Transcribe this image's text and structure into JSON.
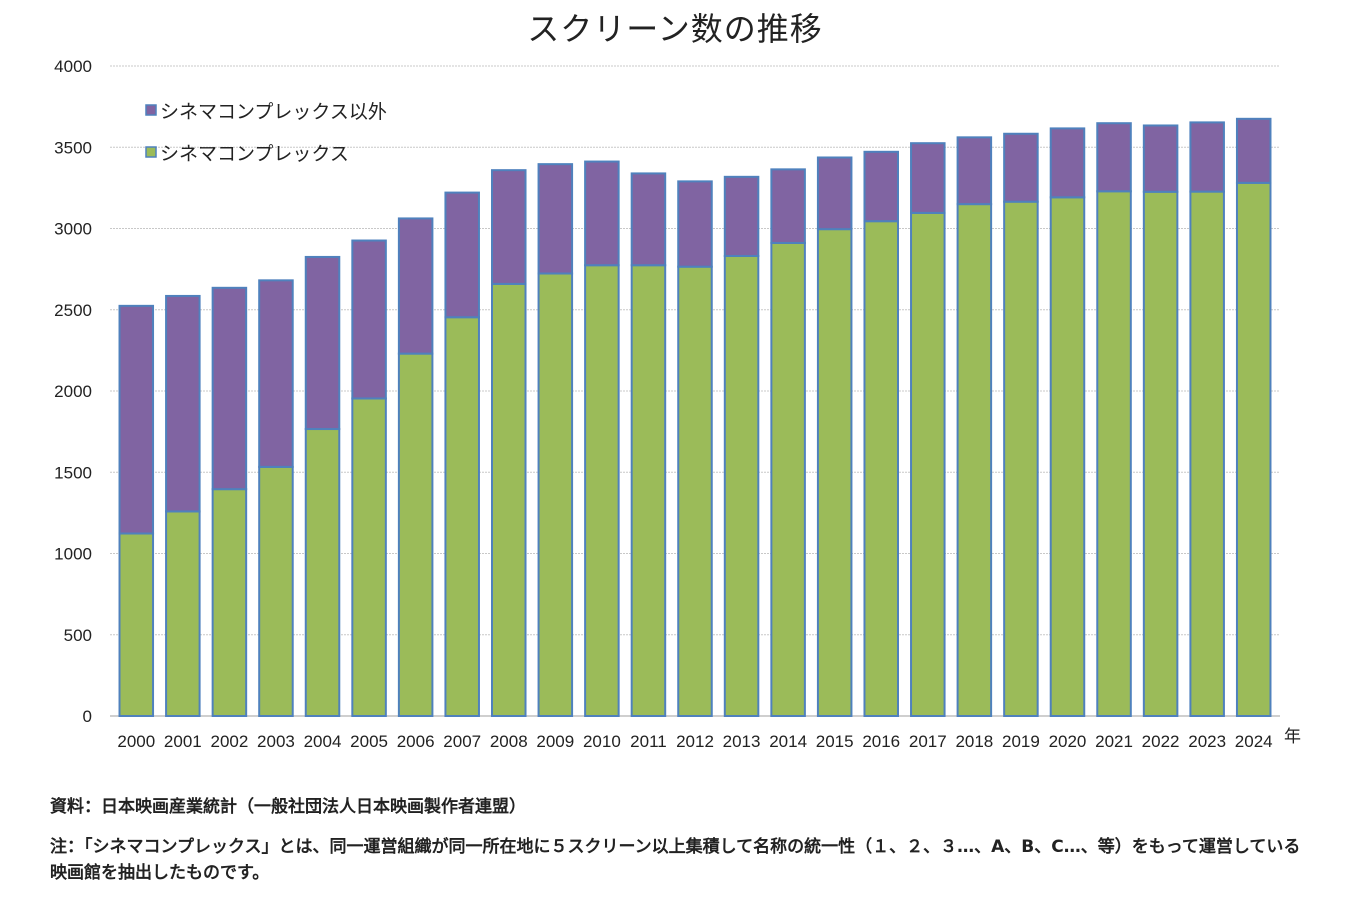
{
  "chart_data": {
    "type": "bar",
    "stacked": true,
    "title": "スクリーン数の推移",
    "xlabel": "",
    "x_unit_label": "年",
    "ylabel": "",
    "ylim": [
      0,
      4000
    ],
    "yticks": [
      0,
      500,
      1000,
      1500,
      2000,
      2500,
      3000,
      3500,
      4000
    ],
    "grid": true,
    "legend_position": "top-left",
    "categories": [
      "2000",
      "2001",
      "2002",
      "2003",
      "2004",
      "2005",
      "2006",
      "2007",
      "2008",
      "2009",
      "2010",
      "2011",
      "2012",
      "2013",
      "2014",
      "2015",
      "2016",
      "2017",
      "2018",
      "2019",
      "2020",
      "2021",
      "2022",
      "2023",
      "2024"
    ],
    "series": [
      {
        "name": "シネマコンプレックス",
        "color": "#9bbb59",
        "values": [
          1123,
          1259,
          1396,
          1533,
          1766,
          1954,
          2230,
          2454,
          2659,
          2723,
          2774,
          2774,
          2765,
          2831,
          2911,
          2996,
          3045,
          3096,
          3150,
          3165,
          3192,
          3229,
          3226,
          3227,
          3281
        ]
      },
      {
        "name": "シネマコンプレックス以外",
        "color": "#8064a2",
        "values": [
          1401,
          1326,
          1239,
          1148,
          1059,
          972,
          832,
          767,
          700,
          673,
          638,
          565,
          525,
          487,
          453,
          441,
          427,
          429,
          411,
          418,
          424,
          419,
          408,
          426,
          394
        ]
      }
    ],
    "legend_order": [
      "シネマコンプレックス以外",
      "シネマコンプレックス"
    ],
    "bar_edge_color": "#4f81bd"
  },
  "notes": {
    "source": "資料：日本映画産業統計（一般社団法人日本映画製作者連盟）",
    "footnote": "注：「シネマコンプレックス」とは、同一運営組織が同一所在地に５スクリーン以上集積して名称の統一性（１、２、３…、A、B、C…、等）をもって運営している映画館を抽出したものです。"
  }
}
